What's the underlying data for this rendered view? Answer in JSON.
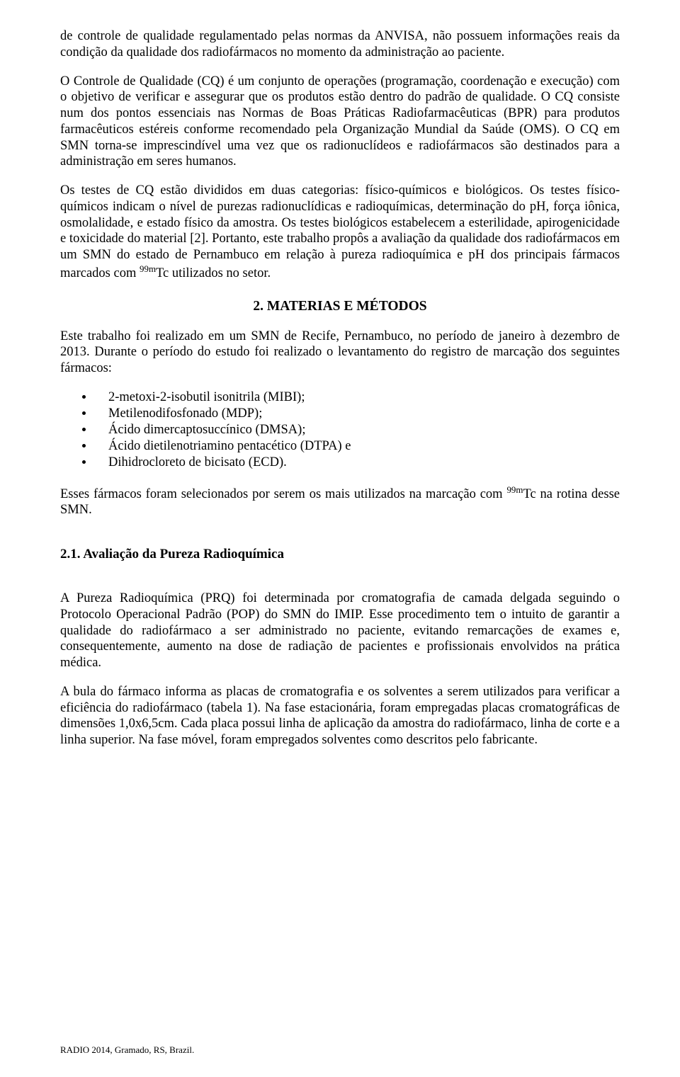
{
  "para1": "de controle de qualidade regulamentado pelas normas da ANVISA, não possuem informações reais da condição da qualidade dos radiofármacos no momento da administração ao paciente.",
  "para2a": "O Controle de Qualidade (CQ) é um conjunto de operações (programação, coordenação e execução) com o objetivo de verificar e assegurar que os produtos estão dentro do padrão de qualidade. O CQ consiste num dos pontos essenciais nas Normas de Boas Práticas Radiofarmacêuticas (BPR) para produtos farmacêuticos estéreis conforme recomendado pela Organização Mundial da Saúde (OMS). O CQ em SMN torna-se imprescindível uma vez que os radionuclídeos e radiofármacos são destinados para a administração em seres humanos.",
  "para3a": "Os testes de CQ estão divididos em duas categorias: físico-químicos e biológicos. Os testes físico-químicos indicam o nível de purezas radionuclídicas e radioquímicas, determinação do pH, força iônica, osmolalidade, e estado físico da amostra. Os testes biológicos estabelecem a esterilidade, apirogenicidade e toxicidade do material [2]. Portanto, este trabalho propôs a avaliação da qualidade dos radiofármacos em um SMN do estado de Pernambuco em relação à pureza radioquímica e pH dos principais fármacos marcados com ",
  "para3b": "Tc utilizados no setor.",
  "heading2": "2. MATERIAS E MÉTODOS",
  "para4": "Este trabalho foi realizado em um SMN de Recife, Pernambuco, no período de janeiro à dezembro de 2013. Durante o período do estudo foi realizado o levantamento do registro de marcação dos seguintes fármacos:",
  "items": [
    "2-metoxi-2-isobutil isonitrila (MIBI);",
    "Metilenodifosfonado (MDP);",
    "Ácido dimercaptosuccínico (DMSA);",
    "Ácido dietilenotriamino pentacético (DTPA) e",
    "Dihidrocloreto de bicisato (ECD)."
  ],
  "para5a": "Esses fármacos foram selecionados por serem os mais utilizados na marcação com ",
  "para5b": "Tc na rotina desse SMN.",
  "heading3": "2.1. Avaliação da Pureza Radioquímica",
  "para6": "A Pureza Radioquímica (PRQ) foi determinada por cromatografia de camada delgada seguindo o Protocolo Operacional Padrão (POP) do SMN do IMIP. Esse procedimento tem o intuito de garantir a qualidade do radiofármaco a ser administrado no paciente, evitando remarcações de exames e, consequentemente, aumento na dose de radiação de pacientes e profissionais envolvidos na prática médica.",
  "para7": "A bula do fármaco informa as placas de cromatografia e os solventes a serem utilizados para verificar a eficiência do radiofármaco (tabela 1). Na fase estacionária, foram empregadas placas cromatográficas de dimensões 1,0x6,5cm. Cada placa possui linha de aplicação da amostra do radiofármaco, linha de corte e a linha superior. Na fase móvel, foram empregados solventes como descritos pelo fabricante.",
  "sup99m": "99m",
  "footer": "RADIO 2014, Gramado, RS, Brazil."
}
